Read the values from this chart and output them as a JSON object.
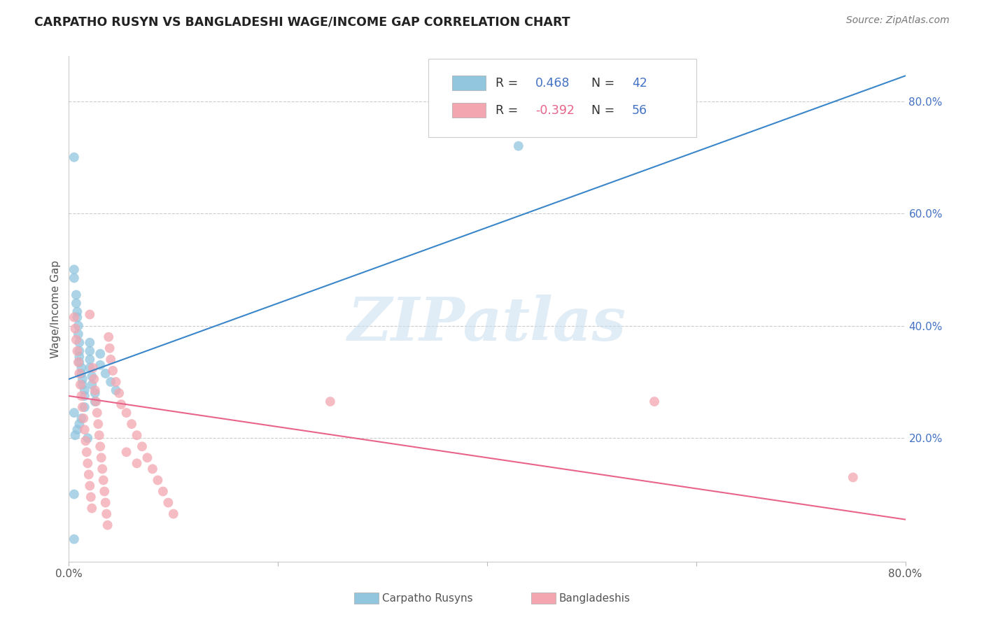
{
  "title": "CARPATHO RUSYN VS BANGLADESHI WAGE/INCOME GAP CORRELATION CHART",
  "source": "Source: ZipAtlas.com",
  "ylabel": "Wage/Income Gap",
  "xlim": [
    0.0,
    0.8
  ],
  "ylim": [
    -0.02,
    0.88
  ],
  "xticks": [
    0.0,
    0.2,
    0.4,
    0.6,
    0.8
  ],
  "xticklabels": [
    "0.0%",
    "",
    "",
    "",
    "80.0%"
  ],
  "ytick_vals": [
    0.2,
    0.4,
    0.6,
    0.8
  ],
  "yticklabels_right": [
    "20.0%",
    "40.0%",
    "60.0%",
    "80.0%"
  ],
  "blue_color": "#92c5de",
  "pink_color": "#f4a6b0",
  "blue_line_color": "#3a86c8",
  "pink_line_color": "#e8648a",
  "R_blue": 0.468,
  "N_blue": 42,
  "R_pink": -0.392,
  "N_pink": 56,
  "legend_label_blue": "Carpatho Rusyns",
  "legend_label_pink": "Bangladeshis",
  "watermark": "ZIPatlas",
  "blue_line_x": [
    0.0,
    0.8
  ],
  "blue_line_y": [
    0.305,
    0.845
  ],
  "pink_line_x": [
    0.0,
    0.8
  ],
  "pink_line_y": [
    0.275,
    0.055
  ],
  "blue_points": [
    [
      0.005,
      0.7
    ],
    [
      0.005,
      0.5
    ],
    [
      0.005,
      0.485
    ],
    [
      0.007,
      0.455
    ],
    [
      0.007,
      0.44
    ],
    [
      0.008,
      0.425
    ],
    [
      0.008,
      0.415
    ],
    [
      0.009,
      0.4
    ],
    [
      0.009,
      0.385
    ],
    [
      0.01,
      0.37
    ],
    [
      0.01,
      0.355
    ],
    [
      0.01,
      0.345
    ],
    [
      0.01,
      0.335
    ],
    [
      0.012,
      0.325
    ],
    [
      0.012,
      0.315
    ],
    [
      0.013,
      0.305
    ],
    [
      0.013,
      0.295
    ],
    [
      0.015,
      0.285
    ],
    [
      0.015,
      0.275
    ],
    [
      0.02,
      0.37
    ],
    [
      0.02,
      0.355
    ],
    [
      0.02,
      0.34
    ],
    [
      0.02,
      0.325
    ],
    [
      0.022,
      0.31
    ],
    [
      0.022,
      0.295
    ],
    [
      0.025,
      0.28
    ],
    [
      0.025,
      0.265
    ],
    [
      0.03,
      0.35
    ],
    [
      0.03,
      0.33
    ],
    [
      0.035,
      0.315
    ],
    [
      0.04,
      0.3
    ],
    [
      0.045,
      0.285
    ],
    [
      0.005,
      0.1
    ],
    [
      0.005,
      0.02
    ],
    [
      0.005,
      0.245
    ],
    [
      0.018,
      0.2
    ],
    [
      0.43,
      0.72
    ],
    [
      0.015,
      0.255
    ],
    [
      0.012,
      0.235
    ],
    [
      0.01,
      0.225
    ],
    [
      0.008,
      0.215
    ],
    [
      0.006,
      0.205
    ]
  ],
  "pink_points": [
    [
      0.005,
      0.415
    ],
    [
      0.006,
      0.395
    ],
    [
      0.007,
      0.375
    ],
    [
      0.008,
      0.355
    ],
    [
      0.009,
      0.335
    ],
    [
      0.01,
      0.315
    ],
    [
      0.011,
      0.295
    ],
    [
      0.012,
      0.275
    ],
    [
      0.013,
      0.255
    ],
    [
      0.014,
      0.235
    ],
    [
      0.015,
      0.215
    ],
    [
      0.016,
      0.195
    ],
    [
      0.017,
      0.175
    ],
    [
      0.018,
      0.155
    ],
    [
      0.019,
      0.135
    ],
    [
      0.02,
      0.115
    ],
    [
      0.021,
      0.095
    ],
    [
      0.022,
      0.075
    ],
    [
      0.023,
      0.325
    ],
    [
      0.024,
      0.305
    ],
    [
      0.025,
      0.285
    ],
    [
      0.026,
      0.265
    ],
    [
      0.027,
      0.245
    ],
    [
      0.028,
      0.225
    ],
    [
      0.029,
      0.205
    ],
    [
      0.03,
      0.185
    ],
    [
      0.031,
      0.165
    ],
    [
      0.032,
      0.145
    ],
    [
      0.033,
      0.125
    ],
    [
      0.034,
      0.105
    ],
    [
      0.035,
      0.085
    ],
    [
      0.036,
      0.065
    ],
    [
      0.037,
      0.045
    ],
    [
      0.038,
      0.38
    ],
    [
      0.039,
      0.36
    ],
    [
      0.04,
      0.34
    ],
    [
      0.042,
      0.32
    ],
    [
      0.045,
      0.3
    ],
    [
      0.048,
      0.28
    ],
    [
      0.05,
      0.26
    ],
    [
      0.055,
      0.245
    ],
    [
      0.06,
      0.225
    ],
    [
      0.065,
      0.205
    ],
    [
      0.07,
      0.185
    ],
    [
      0.075,
      0.165
    ],
    [
      0.08,
      0.145
    ],
    [
      0.085,
      0.125
    ],
    [
      0.09,
      0.105
    ],
    [
      0.095,
      0.085
    ],
    [
      0.1,
      0.065
    ],
    [
      0.25,
      0.265
    ],
    [
      0.56,
      0.265
    ],
    [
      0.02,
      0.42
    ],
    [
      0.75,
      0.13
    ],
    [
      0.055,
      0.175
    ],
    [
      0.065,
      0.155
    ]
  ]
}
